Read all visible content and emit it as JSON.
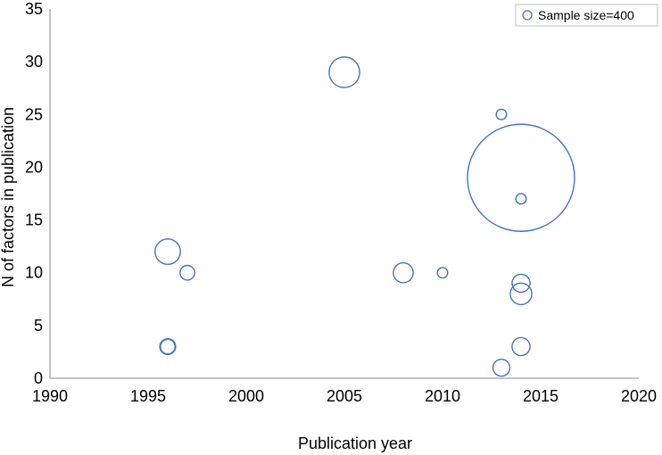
{
  "chart_data": {
    "type": "scatter",
    "subtype": "bubble",
    "title": "",
    "xlabel": "Publication year",
    "ylabel": "N of factors in publication",
    "xlim": [
      1990,
      2020
    ],
    "ylim": [
      0,
      35
    ],
    "x_ticks": [
      "1990",
      "1995",
      "2000",
      "2005",
      "2010",
      "2015",
      "2020"
    ],
    "y_ticks": [
      "0",
      "5",
      "10",
      "15",
      "20",
      "25",
      "30",
      "35"
    ],
    "grid": false,
    "legend": {
      "position": "top-right",
      "label": "Sample size=400"
    },
    "marker": {
      "fill": "none",
      "stroke": "#4472C4"
    },
    "points": [
      {
        "x": 1996,
        "y": 12,
        "size": 90
      },
      {
        "x": 1997,
        "y": 10,
        "size": 30
      },
      {
        "x": 1996,
        "y": 3,
        "size": 35
      },
      {
        "x": 1996,
        "y": 3,
        "size": 30
      },
      {
        "x": 2005,
        "y": 29,
        "size": 130
      },
      {
        "x": 2008,
        "y": 10,
        "size": 55
      },
      {
        "x": 2010,
        "y": 10,
        "size": 15
      },
      {
        "x": 2013,
        "y": 25,
        "size": 15
      },
      {
        "x": 2014,
        "y": 19,
        "size": 1600
      },
      {
        "x": 2014,
        "y": 17,
        "size": 15
      },
      {
        "x": 2014,
        "y": 9,
        "size": 45
      },
      {
        "x": 2014,
        "y": 8,
        "size": 65
      },
      {
        "x": 2014,
        "y": 3,
        "size": 45
      },
      {
        "x": 2013,
        "y": 1,
        "size": 40
      }
    ]
  }
}
